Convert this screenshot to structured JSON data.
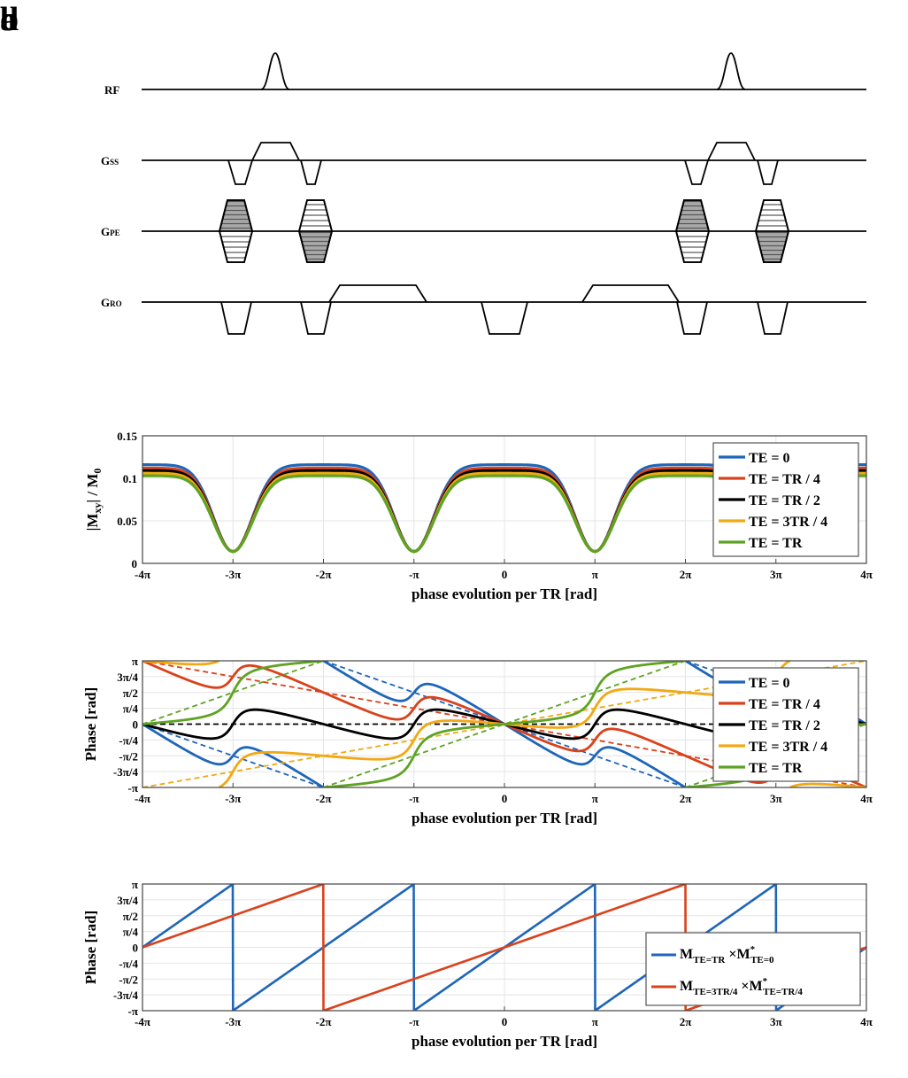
{
  "panel_labels": {
    "a": "a",
    "b": "b",
    "c": "c",
    "d": "d"
  },
  "sequence_diagram": {
    "rows": [
      {
        "key": "RF",
        "label": "RF",
        "main": "RF",
        "sub": ""
      },
      {
        "key": "GSS",
        "label": "GSS",
        "main": "G",
        "sub": "SS"
      },
      {
        "key": "GPE",
        "label": "GPE",
        "main": "G",
        "sub": "PE"
      },
      {
        "key": "GRO",
        "label": "GRO",
        "main": "G",
        "sub": "RO"
      }
    ]
  },
  "x_tick_labels": [
    "-4π",
    "-3π",
    "-2π",
    "-π",
    "0",
    "π",
    "2π",
    "3π",
    "4π"
  ],
  "phase_tick_labels": [
    "π",
    "3π/4",
    "π/2",
    "π/4",
    "0",
    "-π/4",
    "-π/2",
    "-3π/4",
    "-π"
  ],
  "colors": {
    "blue": "#1f66b8",
    "red": "#d9421c",
    "black": "#000000",
    "yellow": "#f0a914",
    "green": "#5ea323"
  },
  "chart_data": [
    {
      "id": "b",
      "type": "line",
      "xlabel": "phase evolution per TR [rad]",
      "ylabel": "|Mxy| / M0",
      "ylabel_parts": {
        "m1": "|M",
        "s1": "xy",
        "m2": "| / M",
        "s2": "0"
      },
      "xlim": [
        -12.566,
        12.566
      ],
      "ylim": [
        0,
        0.15
      ],
      "yticks": [
        0,
        0.05,
        0.1,
        0.15
      ],
      "ytick_labels": [
        "0",
        "0.05",
        "0.1",
        "0.15"
      ],
      "series": [
        {
          "name": "TE =  0",
          "plateau": 0.116,
          "min": 0.014
        },
        {
          "name": "TE =  TR / 4",
          "plateau": 0.112,
          "min": 0.014
        },
        {
          "name": "TE =  TR / 2",
          "plateau": 0.109,
          "min": 0.014
        },
        {
          "name": "TE =  3TR / 4",
          "plateau": 0.106,
          "min": 0.014
        },
        {
          "name": "TE =  TR",
          "plateau": 0.103,
          "min": 0.014
        }
      ],
      "minima_at": [
        "-3π",
        "-π",
        "π",
        "3π"
      ]
    },
    {
      "id": "c",
      "type": "line",
      "xlabel": "phase evolution per TR [rad]",
      "ylabel": "Phase [rad]",
      "xlim": [
        -12.566,
        12.566
      ],
      "ylim": [
        -3.1416,
        3.1416
      ],
      "series": [
        {
          "name": "TE =  0",
          "color": "blue",
          "slope": -0.125
        },
        {
          "name": "TE =  TR / 4",
          "color": "red",
          "slope": 0.125
        },
        {
          "name": "TE =  TR / 2",
          "color": "black",
          "slope": 0.375
        },
        {
          "name": "TE =  3TR / 4",
          "color": "yellow",
          "slope": 0.625
        },
        {
          "name": "TE =  TR",
          "color": "green",
          "slope": 0.875
        }
      ]
    },
    {
      "id": "d",
      "type": "line",
      "xlabel": "phase evolution per TR [rad]",
      "ylabel": "Phase [rad]",
      "xlim": [
        -12.566,
        12.566
      ],
      "ylim": [
        -3.1416,
        3.1416
      ],
      "series": [
        {
          "name": "MTE=TR × M*TE=0",
          "color": "blue",
          "slope": 1.0,
          "label_parts": {
            "m1": "M",
            "s1": "TE=TR",
            "x": " ×M",
            "sup": "*",
            "s2": "TE=0"
          }
        },
        {
          "name": "MTE=3TR/4 × M*TE=TR/4",
          "color": "red",
          "slope": 0.5,
          "label_parts": {
            "m1": "M",
            "s1": "TE=3TR/4",
            "x": " ×M",
            "sup": "*",
            "s2": "TE=TR/4"
          }
        }
      ]
    }
  ]
}
